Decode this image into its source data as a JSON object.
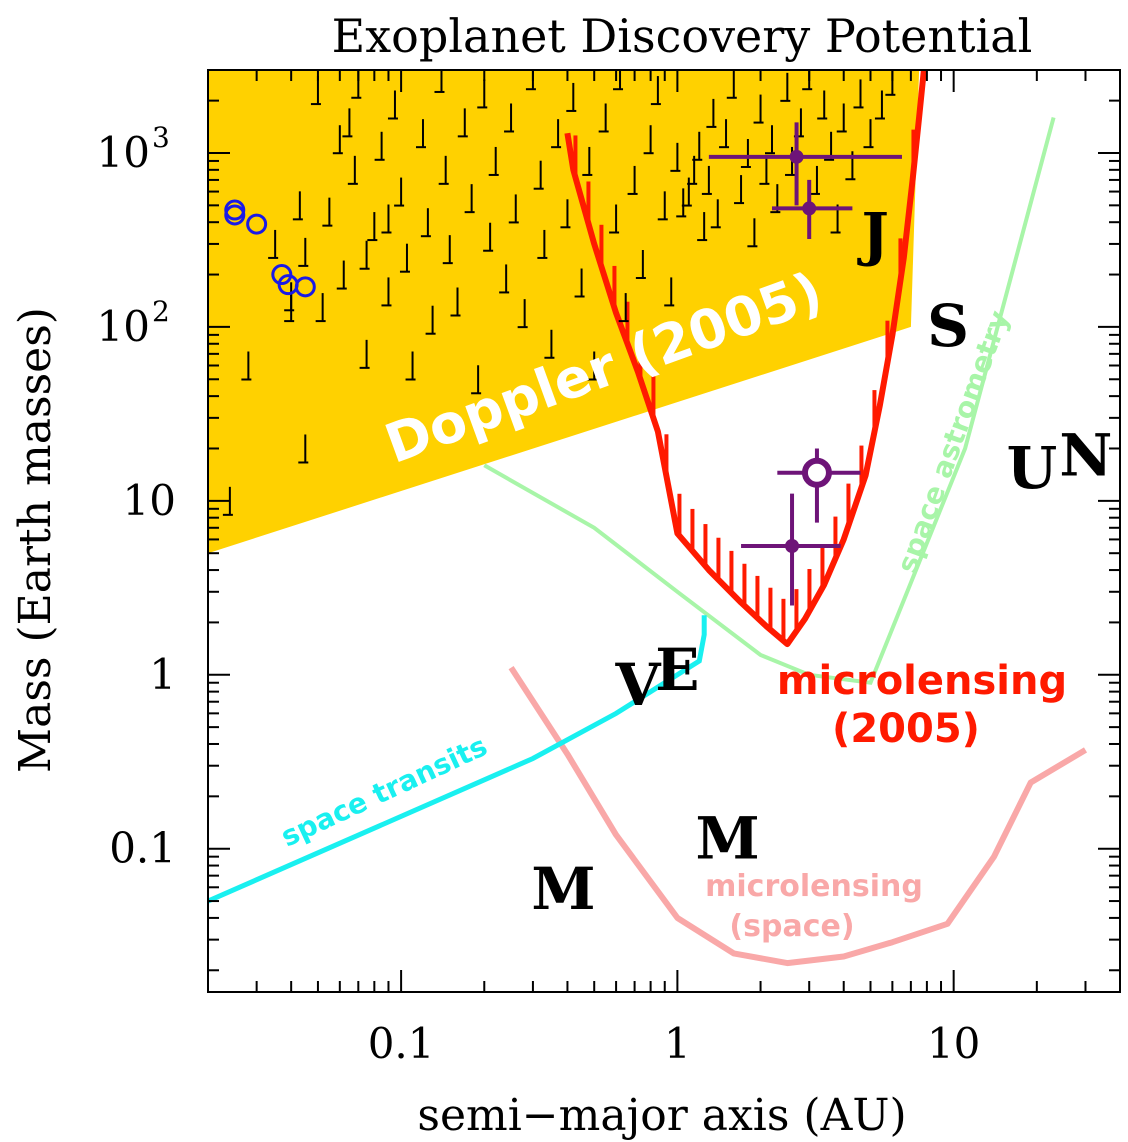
{
  "chart_data": {
    "type": "scatter",
    "title": "Exoplanet Discovery Potential",
    "xlabel": "semi−major axis (AU)",
    "ylabel": "Mass (Earth masses)",
    "xscale": "log",
    "yscale": "log",
    "xlim": [
      0.02,
      40
    ],
    "ylim": [
      0.015,
      3000
    ],
    "x_ticks": [
      {
        "v": 0.1,
        "label": "0.1"
      },
      {
        "v": 1,
        "label": "1"
      },
      {
        "v": 10,
        "label": "10"
      }
    ],
    "y_ticks": [
      {
        "v": 0.1,
        "label": "0.1"
      },
      {
        "v": 1,
        "label": "1"
      },
      {
        "v": 10,
        "label": "10"
      },
      {
        "v": 100,
        "label": "10²",
        "base": "10",
        "exp": "2"
      },
      {
        "v": 1000,
        "label": "10³",
        "base": "10",
        "exp": "3"
      }
    ],
    "colors": {
      "doppler": "#FFD100",
      "microlensing_2005": "#FF1A00",
      "microlensing_space": "#F9A8A8",
      "space_transits": "#19F0F0",
      "space_astrometry": "#A8F5A8",
      "transit_planets": "#1A1AE6",
      "microlensing_planets": "#6E1478",
      "doppler_planets": "#000000",
      "solar_system": "#000000"
    },
    "regions": [
      {
        "name": "Doppler (2005)",
        "label": "Doppler (2005)",
        "polygon": [
          [
            0.02,
            5
          ],
          [
            0.02,
            3000
          ],
          [
            7.5,
            3000
          ],
          [
            7,
            100
          ]
        ]
      }
    ],
    "curves": [
      {
        "name": "microlensing (2005)",
        "label_lines": [
          "microlensing",
          "(2005)"
        ],
        "x": [
          0.4,
          0.42,
          0.5,
          0.6,
          0.72,
          0.85,
          1,
          1.3,
          1.7,
          2.1,
          2.5,
          2.9,
          3.4,
          4.0,
          4.8,
          5.4,
          6.0,
          6.6,
          7.1,
          7.5,
          7.8
        ],
        "y": [
          1300,
          800,
          300,
          120,
          55,
          25,
          6.5,
          4.0,
          2.6,
          1.9,
          1.5,
          2.1,
          3.3,
          6.0,
          14,
          35,
          90,
          250,
          700,
          1600,
          3000
        ]
      },
      {
        "name": "microlensing (space)",
        "label_lines": [
          "microlensing",
          "(space)"
        ],
        "x": [
          0.25,
          0.4,
          0.6,
          1.0,
          1.6,
          2.5,
          4,
          6,
          9.5,
          14,
          19,
          30
        ],
        "y": [
          1.1,
          0.35,
          0.12,
          0.04,
          0.025,
          0.022,
          0.024,
          0.029,
          0.037,
          0.09,
          0.24,
          0.37
        ]
      },
      {
        "name": "space transits",
        "label": "space transits",
        "x": [
          0.02,
          0.3,
          0.6,
          1.0,
          1.2,
          1.25,
          1.25
        ],
        "y": [
          0.05,
          0.33,
          0.6,
          1.0,
          1.2,
          1.7,
          2.2
        ]
      },
      {
        "name": "space astrometry",
        "label": "space astrometry",
        "x": [
          0.2,
          0.5,
          1.0,
          2.0,
          3.0,
          5.0,
          11,
          23
        ],
        "y": [
          16,
          7,
          3,
          1.3,
          1.0,
          0.9,
          20,
          1600
        ]
      }
    ],
    "series": [
      {
        "name": "transit planets",
        "marker": "open-circle",
        "points": [
          [
            0.025,
            470
          ],
          [
            0.025,
            440
          ],
          [
            0.03,
            390
          ],
          [
            0.037,
            200
          ],
          [
            0.039,
            175
          ],
          [
            0.045,
            170
          ]
        ]
      },
      {
        "name": "microlensing planets",
        "marker": "filled-circle-errorbar",
        "points": [
          {
            "x": 2.7,
            "y": 950,
            "xlo": 1.3,
            "xhi": 6.5,
            "ylo": 500,
            "yhi": 1500
          },
          {
            "x": 3.0,
            "y": 480,
            "xlo": 2.2,
            "xhi": 4.3,
            "ylo": 320,
            "yhi": 700
          },
          {
            "x": 3.2,
            "y": 14.5,
            "xlo": 2.3,
            "xhi": 4.6,
            "ylo": 7.5,
            "yhi": 20,
            "open": true
          },
          {
            "x": 2.6,
            "y": 5.5,
            "xlo": 1.7,
            "xhi": 3.9,
            "ylo": 2.5,
            "yhi": 11
          }
        ]
      },
      {
        "name": "doppler planets",
        "marker": "upper-limit",
        "points": [
          [
            0.024,
            10
          ],
          [
            0.043,
            500
          ],
          [
            0.045,
            270
          ],
          [
            0.05,
            2300
          ],
          [
            0.052,
            130
          ],
          [
            0.055,
            460
          ],
          [
            0.06,
            1200
          ],
          [
            0.062,
            200
          ],
          [
            0.068,
            800
          ],
          [
            0.07,
            2500
          ],
          [
            0.075,
            70
          ],
          [
            0.08,
            380
          ],
          [
            0.085,
            1100
          ],
          [
            0.09,
            160
          ],
          [
            0.095,
            1900
          ],
          [
            0.1,
            600
          ],
          [
            0.105,
            250
          ],
          [
            0.11,
            60
          ],
          [
            0.12,
            1300
          ],
          [
            0.125,
            400
          ],
          [
            0.13,
            110
          ],
          [
            0.14,
            2700
          ],
          [
            0.145,
            800
          ],
          [
            0.15,
            280
          ],
          [
            0.16,
            140
          ],
          [
            0.17,
            1500
          ],
          [
            0.18,
            550
          ],
          [
            0.19,
            50
          ],
          [
            0.2,
            2200
          ],
          [
            0.21,
            330
          ],
          [
            0.22,
            900
          ],
          [
            0.24,
            190
          ],
          [
            0.25,
            1600
          ],
          [
            0.26,
            480
          ],
          [
            0.28,
            120
          ],
          [
            0.3,
            2800
          ],
          [
            0.32,
            750
          ],
          [
            0.33,
            300
          ],
          [
            0.35,
            80
          ],
          [
            0.37,
            1300
          ],
          [
            0.4,
            450
          ],
          [
            0.42,
            2100
          ],
          [
            0.45,
            180
          ],
          [
            0.48,
            900
          ],
          [
            0.5,
            60
          ],
          [
            0.55,
            1600
          ],
          [
            0.6,
            420
          ],
          [
            0.62,
            2800
          ],
          [
            0.65,
            130
          ],
          [
            0.7,
            700
          ],
          [
            0.75,
            230
          ],
          [
            0.8,
            1200
          ],
          [
            0.85,
            2300
          ],
          [
            0.9,
            500
          ],
          [
            0.95,
            160
          ],
          [
            1.0,
            950
          ],
          [
            1.05,
            520
          ],
          [
            1.1,
            600
          ],
          [
            1.15,
            800
          ],
          [
            1.2,
            1100
          ],
          [
            1.25,
            380
          ],
          [
            1.3,
            700
          ],
          [
            1.35,
            1700
          ],
          [
            1.4,
            450
          ],
          [
            1.5,
            1300
          ],
          [
            1.6,
            2500
          ],
          [
            1.7,
            620
          ],
          [
            1.8,
            1000
          ],
          [
            1.9,
            350
          ],
          [
            2.0,
            1800
          ],
          [
            2.1,
            800
          ],
          [
            2.2,
            1200
          ],
          [
            2.3,
            550
          ],
          [
            2.5,
            2400
          ],
          [
            2.6,
            900
          ],
          [
            2.8,
            1500
          ],
          [
            3.0,
            2800
          ],
          [
            3.2,
            700
          ],
          [
            3.4,
            1900
          ],
          [
            3.6,
            1100
          ],
          [
            3.8,
            420
          ],
          [
            4.0,
            1600
          ],
          [
            4.3,
            850
          ],
          [
            4.6,
            2200
          ],
          [
            5.0,
            1300
          ],
          [
            5.5,
            1900
          ],
          [
            6.0,
            2600
          ],
          [
            0.04,
            150
          ],
          [
            0.04,
            130
          ],
          [
            0.045,
            20
          ],
          [
            0.028,
            60
          ],
          [
            0.035,
            300
          ],
          [
            0.065,
            1500
          ],
          [
            0.075,
            260
          ],
          [
            0.09,
            420
          ]
        ]
      },
      {
        "name": "solar system",
        "marker": "letter",
        "points": [
          {
            "label": "M",
            "x": 0.387,
            "y": 0.055
          },
          {
            "label": "V",
            "x": 0.72,
            "y": 0.815
          },
          {
            "label": "E",
            "x": 1.0,
            "y": 1.0
          },
          {
            "label": "M",
            "x": 1.52,
            "y": 0.107
          },
          {
            "label": "J",
            "x": 5.2,
            "y": 318
          },
          {
            "label": "S",
            "x": 9.54,
            "y": 95
          },
          {
            "label": "U",
            "x": 19.2,
            "y": 14.5
          },
          {
            "label": "N",
            "x": 30.1,
            "y": 17.1
          }
        ]
      }
    ],
    "labels": {
      "doppler": "Doppler (2005)",
      "microlensing_2005_line1": "microlensing",
      "microlensing_2005_line2": "(2005)",
      "microlensing_space_line1": "microlensing",
      "microlensing_space_line2": "(space)",
      "space_transits": "space transits",
      "space_astrometry": "space astrometry"
    },
    "legend": "none",
    "grid": false
  }
}
